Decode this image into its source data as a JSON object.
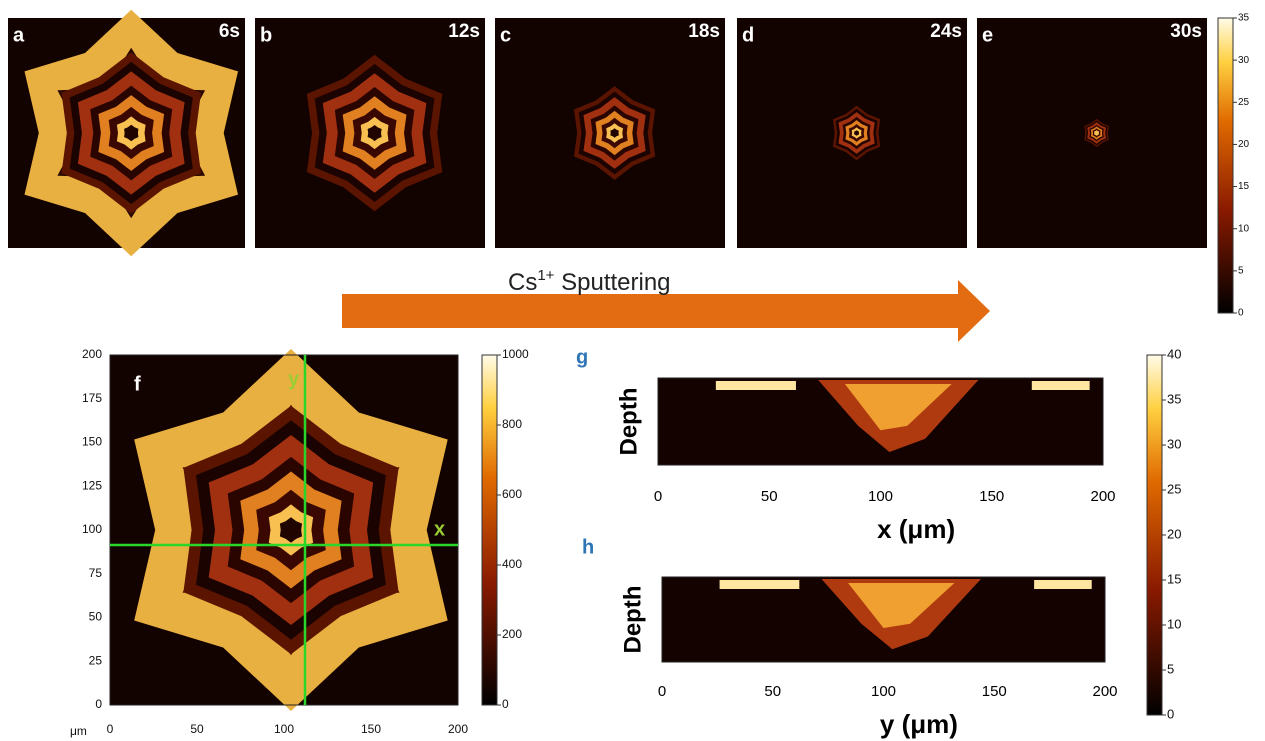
{
  "panels": [
    {
      "label": "a",
      "time": "6s"
    },
    {
      "label": "b",
      "time": "12s"
    },
    {
      "label": "c",
      "time": "18s"
    },
    {
      "label": "d",
      "time": "24s"
    },
    {
      "label": "e",
      "time": "30s"
    }
  ],
  "colorbar_top": {
    "ticks": [
      "0",
      "5",
      "10",
      "15",
      "20",
      "25",
      "30",
      "35"
    ]
  },
  "arrow_label": {
    "base": "Cs",
    "sup": "1+",
    "rest": " Sputtering"
  },
  "panel_f": {
    "label": "f",
    "unit": "μm",
    "xticks": [
      "0",
      "50",
      "100",
      "150",
      "200"
    ],
    "yticks": [
      "0",
      "25",
      "50",
      "75",
      "100",
      "125",
      "150",
      "175",
      "200"
    ],
    "line_labels": {
      "vertical": "y",
      "horizontal": "x"
    },
    "colorbar_ticks": [
      "0",
      "200",
      "400",
      "600",
      "800",
      "1000"
    ]
  },
  "panel_g": {
    "label": "g",
    "y_label": "Depth",
    "x_label": "x (μm)",
    "xticks": [
      "0",
      "50",
      "100",
      "150",
      "200"
    ]
  },
  "panel_h": {
    "label": "h",
    "y_label": "Depth",
    "x_label": "y (μm)",
    "xticks": [
      "0",
      "50",
      "100",
      "150",
      "200"
    ]
  },
  "colorbar_gh": {
    "ticks": [
      "0",
      "5",
      "10",
      "15",
      "20",
      "25",
      "30",
      "35",
      "40"
    ]
  }
}
